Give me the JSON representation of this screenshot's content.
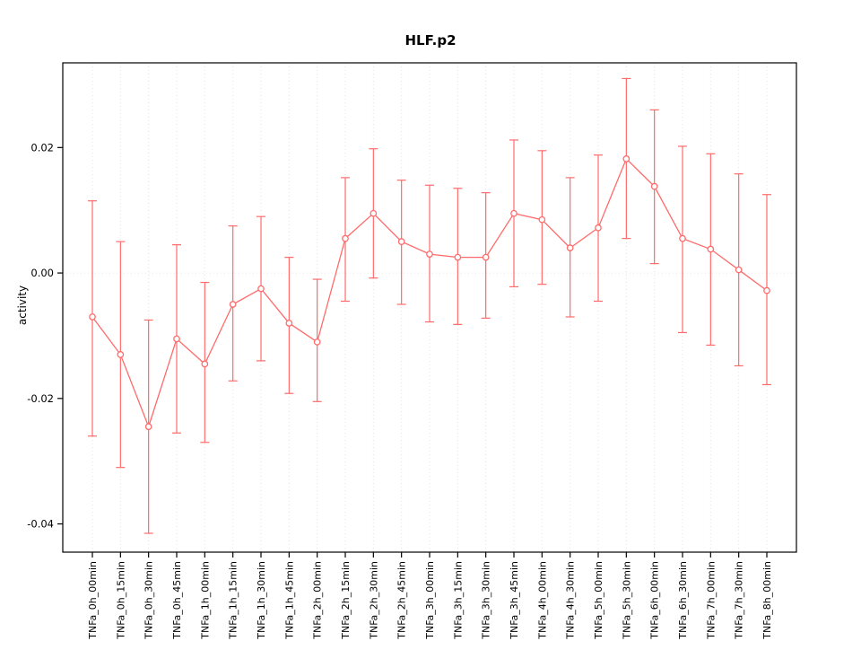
{
  "chart_data": {
    "type": "line",
    "title": "HLF.p2",
    "xlabel": "",
    "ylabel": "activity",
    "ylim": [
      -0.0445,
      0.0335
    ],
    "yticks": [
      -0.04,
      -0.02,
      0.0,
      0.02
    ],
    "grid": true,
    "zero_line": true,
    "legend_position": "none",
    "series_color": "#FF6B6B",
    "grid_color": "#E2E2E2",
    "categories": [
      "TNFa_0h_00min",
      "TNFa_0h_15min",
      "TNFa_0h_30min",
      "TNFa_0h_45min",
      "TNFa_1h_00min",
      "TNFa_1h_15min",
      "TNFa_1h_30min",
      "TNFa_1h_45min",
      "TNFa_2h_00min",
      "TNFa_2h_15min",
      "TNFa_2h_30min",
      "TNFa_2h_45min",
      "TNFa_3h_00min",
      "TNFa_3h_15min",
      "TNFa_3h_30min",
      "TNFa_3h_45min",
      "TNFa_4h_00min",
      "TNFa_4h_30min",
      "TNFa_5h_00min",
      "TNFa_5h_30min",
      "TNFa_6h_00min",
      "TNFa_6h_30min",
      "TNFa_7h_00min",
      "TNFa_7h_30min",
      "TNFa_8h_00min"
    ],
    "series": [
      {
        "name": "activity",
        "values": [
          -0.007,
          -0.013,
          -0.0245,
          -0.0105,
          -0.0145,
          -0.005,
          -0.0025,
          -0.008,
          -0.011,
          0.0055,
          0.0095,
          0.005,
          0.003,
          0.0025,
          0.0025,
          0.0095,
          0.0085,
          0.004,
          0.0072,
          0.0182,
          0.0138,
          0.0055,
          0.0038,
          0.0005,
          -0.0028
        ],
        "upper": [
          0.0115,
          0.005,
          -0.0075,
          0.0045,
          -0.0015,
          0.0075,
          0.009,
          0.0025,
          -0.001,
          0.0152,
          0.0198,
          0.0148,
          0.014,
          0.0135,
          0.0128,
          0.0212,
          0.0195,
          0.0152,
          0.0188,
          0.031,
          0.026,
          0.0202,
          0.019,
          0.0158,
          0.0125
        ],
        "lower": [
          -0.026,
          -0.031,
          -0.0415,
          -0.0255,
          -0.027,
          -0.0172,
          -0.014,
          -0.0192,
          -0.0205,
          -0.0045,
          -0.0008,
          -0.005,
          -0.0078,
          -0.0082,
          -0.0072,
          -0.0022,
          -0.0018,
          -0.007,
          -0.0045,
          0.0055,
          0.0015,
          -0.0095,
          -0.0115,
          -0.0148,
          -0.0178
        ]
      }
    ]
  }
}
